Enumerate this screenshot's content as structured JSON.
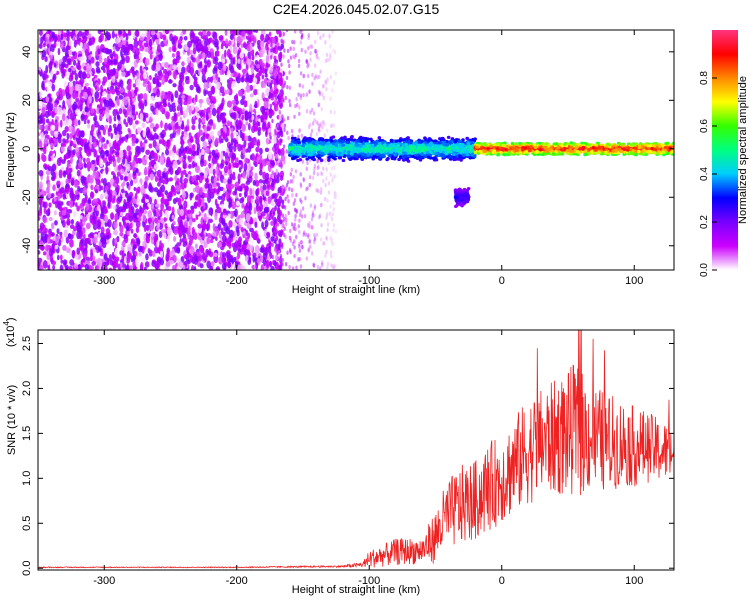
{
  "title": "C2E4.2026.045.02.07.G15",
  "chart_data": [
    {
      "type": "heatmap",
      "xlabel": "Height of straight line (km)",
      "ylabel": "Frequency (Hz)",
      "xlim": [
        -350,
        130
      ],
      "ylim": [
        -50,
        49
      ],
      "xticks": [
        -300,
        -200,
        -100,
        0,
        100
      ],
      "yticks": [
        -40,
        -20,
        0,
        20,
        40
      ],
      "description_regions": [
        {
          "x_range": [
            -350,
            -175
          ],
          "y_range": [
            -50,
            49
          ],
          "amplitude": [
            0.0,
            0.2
          ],
          "pattern": "noise"
        },
        {
          "x_range": [
            -160,
            -20
          ],
          "y_center": 0,
          "band_halfwidth": 4,
          "amplitude": [
            0.2,
            0.55
          ]
        },
        {
          "x_range": [
            -35,
            -25
          ],
          "y_center": -20,
          "band_halfwidth": 3,
          "amplitude": [
            0.15,
            0.3
          ]
        },
        {
          "x_range": [
            -20,
            130
          ],
          "y_center": 0,
          "band_halfwidth": 2,
          "amplitude": [
            0.5,
            1.0
          ]
        }
      ],
      "colorbar": {
        "label": "Normalized spectral amplitude",
        "range": [
          0.0,
          1.0
        ],
        "ticks": [
          0.0,
          0.2,
          0.4,
          0.6,
          0.8
        ],
        "tick_labels": [
          "0.0",
          "0.2",
          "0.4",
          "0.6",
          "0.8"
        ],
        "colors": [
          "#ffffff",
          "#cc00ff",
          "#7700ff",
          "#0000ff",
          "#00ccff",
          "#00ff80",
          "#33ff00",
          "#ffff00",
          "#ff8800",
          "#ff0000",
          "#ff3380"
        ]
      }
    },
    {
      "type": "line",
      "xlabel": "Height of straight line (km)",
      "ylabel": "SNR (10 * v/v)",
      "scale_label": "(x10",
      "scale_exponent": "4",
      "xlim": [
        -350,
        130
      ],
      "ylim": [
        -0.02,
        2.65
      ],
      "xticks": [
        -300,
        -200,
        -100,
        0,
        100
      ],
      "yticks": [
        0.0,
        0.5,
        1.0,
        1.5,
        2.0,
        2.5
      ],
      "ytick_labels": [
        "0.0",
        "0.5",
        "1.0",
        "1.5",
        "2.0",
        "2.5"
      ],
      "color": "#ee2222",
      "envelope": {
        "x": [
          -350,
          -200,
          -120,
          -105,
          -100,
          -80,
          -60,
          -50,
          -45,
          -40,
          -30,
          -20,
          -10,
          0,
          10,
          20,
          30,
          40,
          50,
          55,
          60,
          70,
          80,
          90,
          100,
          110,
          120,
          130
        ],
        "mean": [
          0.01,
          0.01,
          0.02,
          0.04,
          0.1,
          0.18,
          0.2,
          0.35,
          0.5,
          0.6,
          0.7,
          0.75,
          0.9,
          1.0,
          1.15,
          1.3,
          1.4,
          1.45,
          1.5,
          1.55,
          1.5,
          1.45,
          1.4,
          1.4,
          1.35,
          1.35,
          1.3,
          1.3
        ],
        "amplitude": [
          0.005,
          0.005,
          0.01,
          0.03,
          0.1,
          0.15,
          0.15,
          0.3,
          0.35,
          0.4,
          0.45,
          0.45,
          0.5,
          0.5,
          0.55,
          0.6,
          0.6,
          0.65,
          0.7,
          0.75,
          0.7,
          0.6,
          0.55,
          0.5,
          0.45,
          0.4,
          0.35,
          0.3
        ],
        "peak_max": 2.65
      }
    }
  ]
}
